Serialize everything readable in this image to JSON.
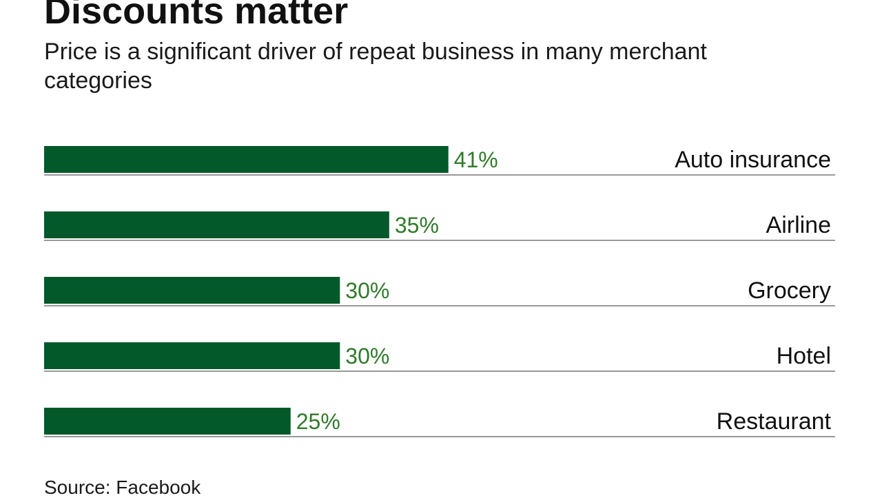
{
  "title": "Discounts matter",
  "subtitle": "Price is a significant driver of repeat business in many merchant categories",
  "source": "Source: Facebook",
  "colors": {
    "bar": "#04592a",
    "value_label": "#2f7a2a",
    "rule": "#777777"
  },
  "chart_data": {
    "type": "bar",
    "orientation": "horizontal",
    "title": "Discounts matter",
    "subtitle": "Price is a significant driver of repeat business in many merchant categories",
    "categories": [
      "Auto insurance",
      "Airline",
      "Grocery",
      "Hotel",
      "Restaurant"
    ],
    "values": [
      41,
      35,
      30,
      30,
      25
    ],
    "value_labels": [
      "41%",
      "35%",
      "30%",
      "30%",
      "25%"
    ],
    "unit": "%",
    "xlim": [
      0,
      80
    ],
    "grid": false,
    "legend": "none"
  }
}
